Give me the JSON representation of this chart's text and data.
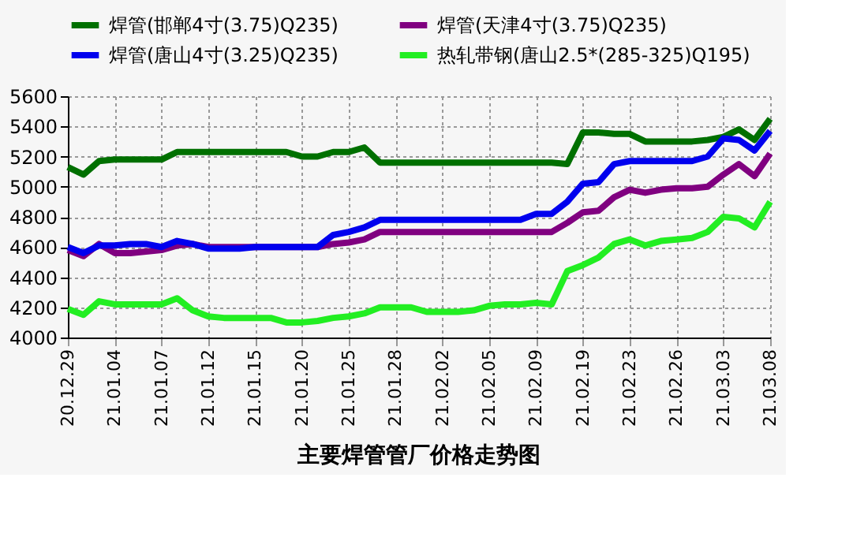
{
  "chart_data": {
    "type": "line",
    "title": "主要焊管管厂价格走势图",
    "categories": [
      "20.12.29",
      null,
      null,
      "21.01.04",
      null,
      null,
      "21.01.07",
      null,
      null,
      "21.01.12",
      null,
      null,
      "21.01.15",
      null,
      null,
      "21.01.20",
      null,
      null,
      "21.01.25",
      null,
      null,
      "21.01.28",
      null,
      null,
      "21.02.02",
      null,
      null,
      "21.02.05",
      null,
      null,
      "21.02.09",
      null,
      null,
      "21.02.19",
      null,
      null,
      "21.02.23",
      null,
      null,
      "21.02.26",
      null,
      null,
      "21.03.03",
      null,
      null,
      "21.03.08"
    ],
    "series": [
      {
        "name": "焊管(邯郸4寸(3.75)Q235)",
        "color": "#007000",
        "values": [
          5130,
          5080,
          5170,
          5180,
          5180,
          5180,
          5180,
          5230,
          5230,
          5230,
          5230,
          5230,
          5230,
          5230,
          5230,
          5200,
          5200,
          5230,
          5230,
          5260,
          5160,
          5160,
          5160,
          5160,
          5160,
          5160,
          5160,
          5160,
          5160,
          5160,
          5160,
          5160,
          5150,
          5360,
          5360,
          5350,
          5350,
          5300,
          5300,
          5300,
          5300,
          5310,
          5330,
          5380,
          5310,
          5450
        ]
      },
      {
        "name": "焊管(天津4寸(3.75)Q235)",
        "color": "#800080",
        "values": [
          4580,
          4540,
          4620,
          4560,
          4560,
          4570,
          4580,
          4610,
          4620,
          4600,
          4600,
          4600,
          4600,
          4600,
          4600,
          4600,
          4600,
          4620,
          4630,
          4650,
          4700,
          4700,
          4700,
          4700,
          4700,
          4700,
          4700,
          4700,
          4700,
          4700,
          4700,
          4700,
          4760,
          4830,
          4840,
          4930,
          4980,
          4960,
          4980,
          4990,
          4990,
          5000,
          5080,
          5150,
          5070,
          5220
        ]
      },
      {
        "name": "焊管(唐山4寸(3.25)Q235)",
        "color": "#0000ee",
        "values": [
          4600,
          4560,
          4610,
          4610,
          4620,
          4620,
          4600,
          4640,
          4620,
          4590,
          4590,
          4590,
          4600,
          4600,
          4600,
          4600,
          4600,
          4680,
          4700,
          4730,
          4780,
          4780,
          4780,
          4780,
          4780,
          4780,
          4780,
          4780,
          4780,
          4780,
          4820,
          4820,
          4900,
          5020,
          5030,
          5150,
          5170,
          5170,
          5170,
          5170,
          5170,
          5200,
          5320,
          5310,
          5240,
          5370
        ]
      },
      {
        "name": "热轧带钢(唐山2.5*(285-325)Q195)",
        "color": "#22ee22",
        "values": [
          4190,
          4150,
          4240,
          4220,
          4220,
          4220,
          4220,
          4260,
          4180,
          4140,
          4130,
          4130,
          4130,
          4130,
          4100,
          4100,
          4110,
          4130,
          4140,
          4160,
          4200,
          4200,
          4200,
          4170,
          4170,
          4170,
          4180,
          4210,
          4220,
          4220,
          4230,
          4220,
          4440,
          4480,
          4530,
          4620,
          4650,
          4610,
          4640,
          4650,
          4660,
          4700,
          4800,
          4790,
          4730,
          4900
        ]
      }
    ],
    "ylim": [
      4000,
      5600
    ],
    "yticks": [
      4000,
      4200,
      4400,
      4600,
      4800,
      5000,
      5200,
      5400,
      5600
    ],
    "grid": true,
    "legend": "top",
    "line_style": "solid",
    "marker": "none"
  }
}
